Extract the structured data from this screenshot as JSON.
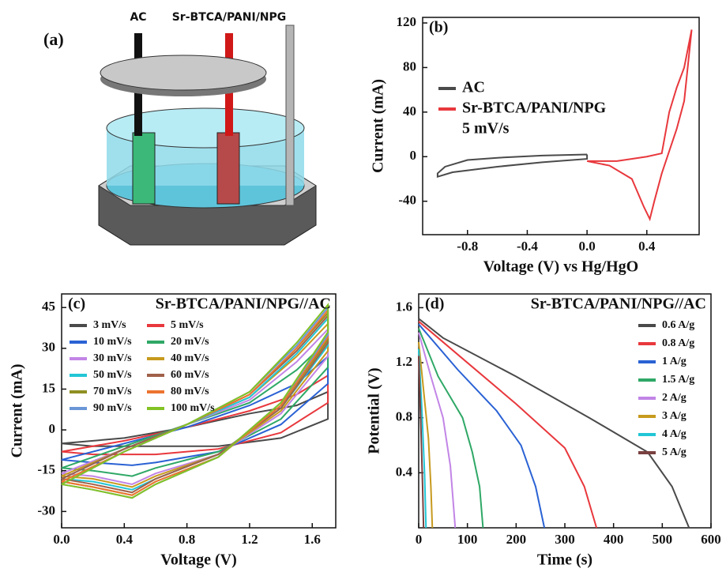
{
  "illustration": {
    "panel_label": "(a)",
    "labels": [
      "AC",
      "Sr-BTCA/PANI/NPG"
    ]
  },
  "chart_data": [
    {
      "type": "line",
      "panel_label": "(b)",
      "x_label": "Voltage (V) vs Hg/HgO",
      "y_label": "Current (mA)",
      "annotation": "5 mV/s",
      "legend_position": "upper left",
      "legend_columns": 1,
      "xlim": [
        -1.1,
        0.75
      ],
      "xticks": [
        -0.8,
        -0.4,
        {
          "value": 0,
          "label": "0.0"
        },
        0.4
      ],
      "ylim": [
        -70,
        125
      ],
      "yticks": [
        -40,
        0,
        40,
        80,
        120
      ],
      "series": [
        {
          "name": "AC",
          "color": "#4a4a4a",
          "x": [
            0,
            -0.3,
            -0.6,
            -0.8,
            -0.95,
            -1.0,
            -1.0,
            -0.9,
            -0.6,
            -0.3,
            0,
            0
          ],
          "values": [
            2,
            1,
            -1,
            -3,
            -9,
            -15,
            -18,
            -14,
            -9,
            -5,
            -2,
            2
          ]
        },
        {
          "name": "Sr-BTCA/PANI/NPG",
          "color": "#e8383d",
          "x": [
            0,
            0.2,
            0.4,
            0.5,
            0.55,
            0.6,
            0.65,
            0.7,
            0.65,
            0.6,
            0.55,
            0.5,
            0.45,
            0.42,
            0.38,
            0.3,
            0.15,
            0
          ],
          "values": [
            -4,
            -4,
            0,
            3,
            40,
            62,
            80,
            114,
            50,
            25,
            5,
            -15,
            -40,
            -56,
            -45,
            -20,
            -8,
            -4
          ]
        }
      ]
    },
    {
      "type": "line",
      "panel_label": "(c)",
      "title": "Sr-BTCA/PANI/NPG//AC",
      "x_label": "Voltage (V)",
      "y_label": "Current (mA)",
      "legend_position": "upper left",
      "legend_columns": 2,
      "xlim": [
        0,
        1.75
      ],
      "xticks": [
        {
          "value": 0,
          "label": "0.0"
        },
        0.4,
        0.8,
        1.2,
        1.6
      ],
      "ylim": [
        -36,
        50
      ],
      "yticks": [
        -30,
        -15,
        0,
        15,
        30,
        45
      ],
      "x": [
        0,
        0.4,
        0.8,
        1.2,
        1.5,
        1.7,
        1.7,
        1.4,
        1.0,
        0.6,
        0.45,
        0.2,
        0
      ],
      "series": [
        {
          "name": "3 mV/s",
          "color": "#4a4a4a",
          "values": [
            -5,
            -3,
            1,
            6,
            9,
            14,
            4,
            -3,
            -6,
            -6,
            -6,
            -6,
            -5
          ]
        },
        {
          "name": "5 mV/s",
          "color": "#e8383d",
          "values": [
            -8,
            -4,
            1,
            7,
            13,
            20,
            10,
            -1,
            -7,
            -9,
            -9,
            -9,
            -8
          ]
        },
        {
          "name": "10 mV/s",
          "color": "#2a62d4",
          "values": [
            -11,
            -5,
            1,
            9,
            17,
            27,
            17,
            2,
            -8,
            -12,
            -13,
            -12,
            -11
          ]
        },
        {
          "name": "20 mV/s",
          "color": "#2fa866",
          "values": [
            -14,
            -6,
            2,
            10,
            22,
            33,
            23,
            4,
            -8,
            -14,
            -17,
            -15,
            -14
          ]
        },
        {
          "name": "30 mV/s",
          "color": "#c285e6",
          "values": [
            -16,
            -7,
            2,
            11,
            25,
            37,
            27,
            6,
            -9,
            -16,
            -20,
            -17,
            -16
          ]
        },
        {
          "name": "40 mV/s",
          "color": "#c79a1e",
          "values": [
            -17,
            -7,
            2,
            12,
            27,
            39,
            29,
            7,
            -9,
            -17,
            -21,
            -18,
            -17
          ]
        },
        {
          "name": "50 mV/s",
          "color": "#22c6d6",
          "values": [
            -18,
            -7,
            2,
            12,
            28,
            41,
            31,
            8,
            -9,
            -18,
            -22,
            -19,
            -18
          ]
        },
        {
          "name": "60 mV/s",
          "color": "#a0604a",
          "values": [
            -18,
            -7,
            2,
            13,
            29,
            42,
            32,
            8,
            -9,
            -18,
            -23,
            -20,
            -18
          ]
        },
        {
          "name": "70 mV/s",
          "color": "#8f8f22",
          "values": [
            -19,
            -8,
            2,
            13,
            30,
            43,
            33,
            9,
            -10,
            -19,
            -24,
            -21,
            -19
          ]
        },
        {
          "name": "80 mV/s",
          "color": "#ec7430",
          "values": [
            -19,
            -8,
            2,
            13,
            30,
            44,
            34,
            9,
            -10,
            -19,
            -24,
            -21,
            -19
          ]
        },
        {
          "name": "90 mV/s",
          "color": "#6a96d6",
          "values": [
            -20,
            -8,
            2,
            14,
            31,
            45,
            35,
            10,
            -10,
            -20,
            -25,
            -22,
            -20
          ]
        },
        {
          "name": "100 mV/s",
          "color": "#82c224",
          "values": [
            -20,
            -8,
            2,
            14,
            32,
            46,
            36,
            10,
            -10,
            -20,
            -25,
            -22,
            -20
          ]
        }
      ]
    },
    {
      "type": "line",
      "panel_label": "(d)",
      "title": "Sr-BTCA/PANI/NPG//AC",
      "x_label": "Time (s)",
      "y_label": "Potential (V)",
      "legend_position": "upper right",
      "legend_columns": 1,
      "xlim": [
        0,
        600
      ],
      "xticks": [
        0,
        100,
        200,
        300,
        400,
        500,
        600
      ],
      "ylim": [
        0,
        1.7
      ],
      "yticks": [
        0.4,
        0.8,
        1.2,
        1.6
      ],
      "series": [
        {
          "name": "0.6 A/g",
          "color": "#4a4a4a",
          "x": [
            0,
            50,
            200,
            350,
            470,
            520,
            555
          ],
          "values": [
            1.52,
            1.38,
            1.1,
            0.8,
            0.55,
            0.3,
            0
          ]
        },
        {
          "name": "0.8 A/g",
          "color": "#e8383d",
          "x": [
            0,
            100,
            200,
            300,
            340,
            365
          ],
          "values": [
            1.5,
            1.2,
            0.9,
            0.58,
            0.3,
            0
          ]
        },
        {
          "name": "1 A/g",
          "color": "#2a62d4",
          "x": [
            0,
            80,
            160,
            210,
            240,
            258
          ],
          "values": [
            1.48,
            1.15,
            0.85,
            0.6,
            0.3,
            0
          ]
        },
        {
          "name": "1.5 A/g",
          "color": "#2fa866",
          "x": [
            0,
            40,
            90,
            110,
            125,
            132
          ],
          "values": [
            1.45,
            1.1,
            0.8,
            0.55,
            0.3,
            0
          ]
        },
        {
          "name": "2 A/g",
          "color": "#c285e6",
          "x": [
            0,
            25,
            50,
            65,
            75
          ],
          "values": [
            1.42,
            1.1,
            0.8,
            0.45,
            0
          ]
        },
        {
          "name": "3 A/g",
          "color": "#c79a1e",
          "x": [
            0,
            10,
            20,
            25,
            28
          ],
          "values": [
            1.35,
            1.0,
            0.65,
            0.3,
            0
          ]
        },
        {
          "name": "4 A/g",
          "color": "#22c6d6",
          "x": [
            0,
            6,
            12,
            15
          ],
          "values": [
            1.3,
            0.9,
            0.4,
            0
          ]
        },
        {
          "name": "5 A/g",
          "color": "#7a4040",
          "x": [
            0,
            4,
            8,
            10
          ],
          "values": [
            1.25,
            0.8,
            0.3,
            0
          ]
        }
      ]
    }
  ]
}
